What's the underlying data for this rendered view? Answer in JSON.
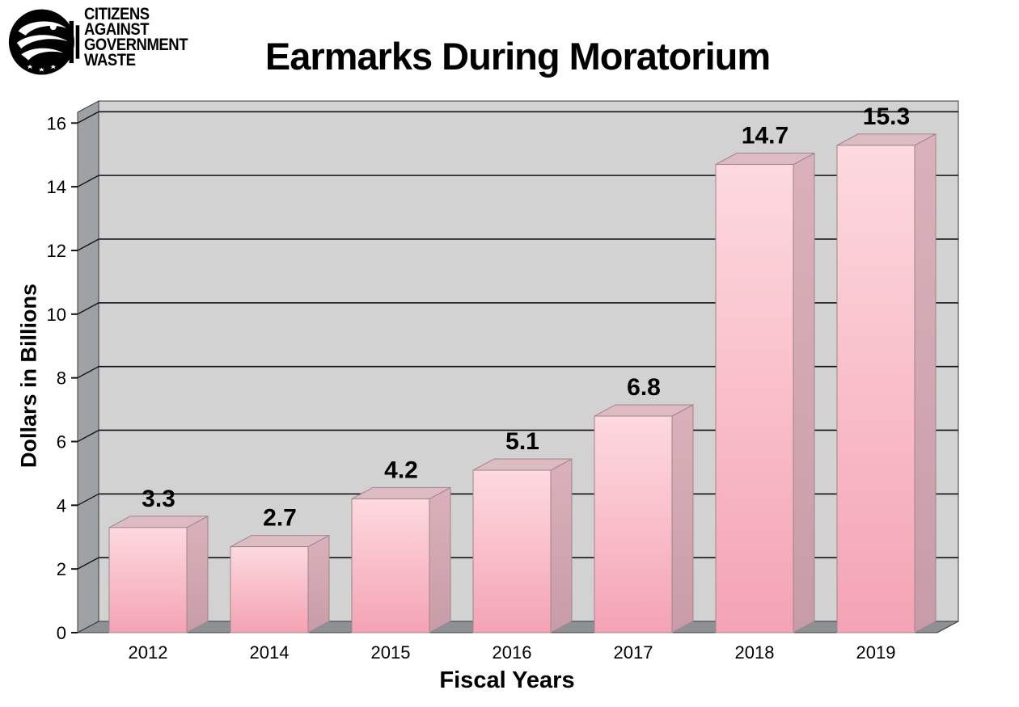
{
  "logo": {
    "lines": [
      "CITIZENS",
      "AGAINST",
      "GOVERNMENT",
      "WASTE"
    ]
  },
  "chart_data": {
    "type": "bar",
    "title": "Earmarks During Moratorium",
    "xlabel": "Fiscal Years",
    "ylabel": "Dollars in Billions",
    "categories": [
      "2012",
      "2014",
      "2015",
      "2016",
      "2017",
      "2018",
      "2019"
    ],
    "values": [
      3.3,
      2.7,
      4.2,
      5.1,
      6.8,
      14.7,
      15.3
    ],
    "value_labels": [
      "3.3",
      "2.7",
      "4.2",
      "5.1",
      "6.8",
      "14.7",
      "15.3"
    ],
    "ylim": [
      0,
      16
    ],
    "ytick_step": 2,
    "yticks": [
      "0",
      "2",
      "4",
      "6",
      "8",
      "10",
      "12",
      "14",
      "16"
    ],
    "grid": true,
    "legend": "none",
    "style": "3d-bars",
    "colors": {
      "wall": "#d2d2d2",
      "side_wall": "#9ea2a4",
      "floor": "#8d9193",
      "gridline": "#141414",
      "edge": "#3a3a3a",
      "bar_front_top": "#fdd9df",
      "bar_front_bottom": "#f4a3b4",
      "bar_top": "#dcbcc2",
      "bar_side_top": "#dab1ba",
      "bar_side_bottom": "#c89ca7",
      "bar_edge": "#9e858c"
    }
  }
}
